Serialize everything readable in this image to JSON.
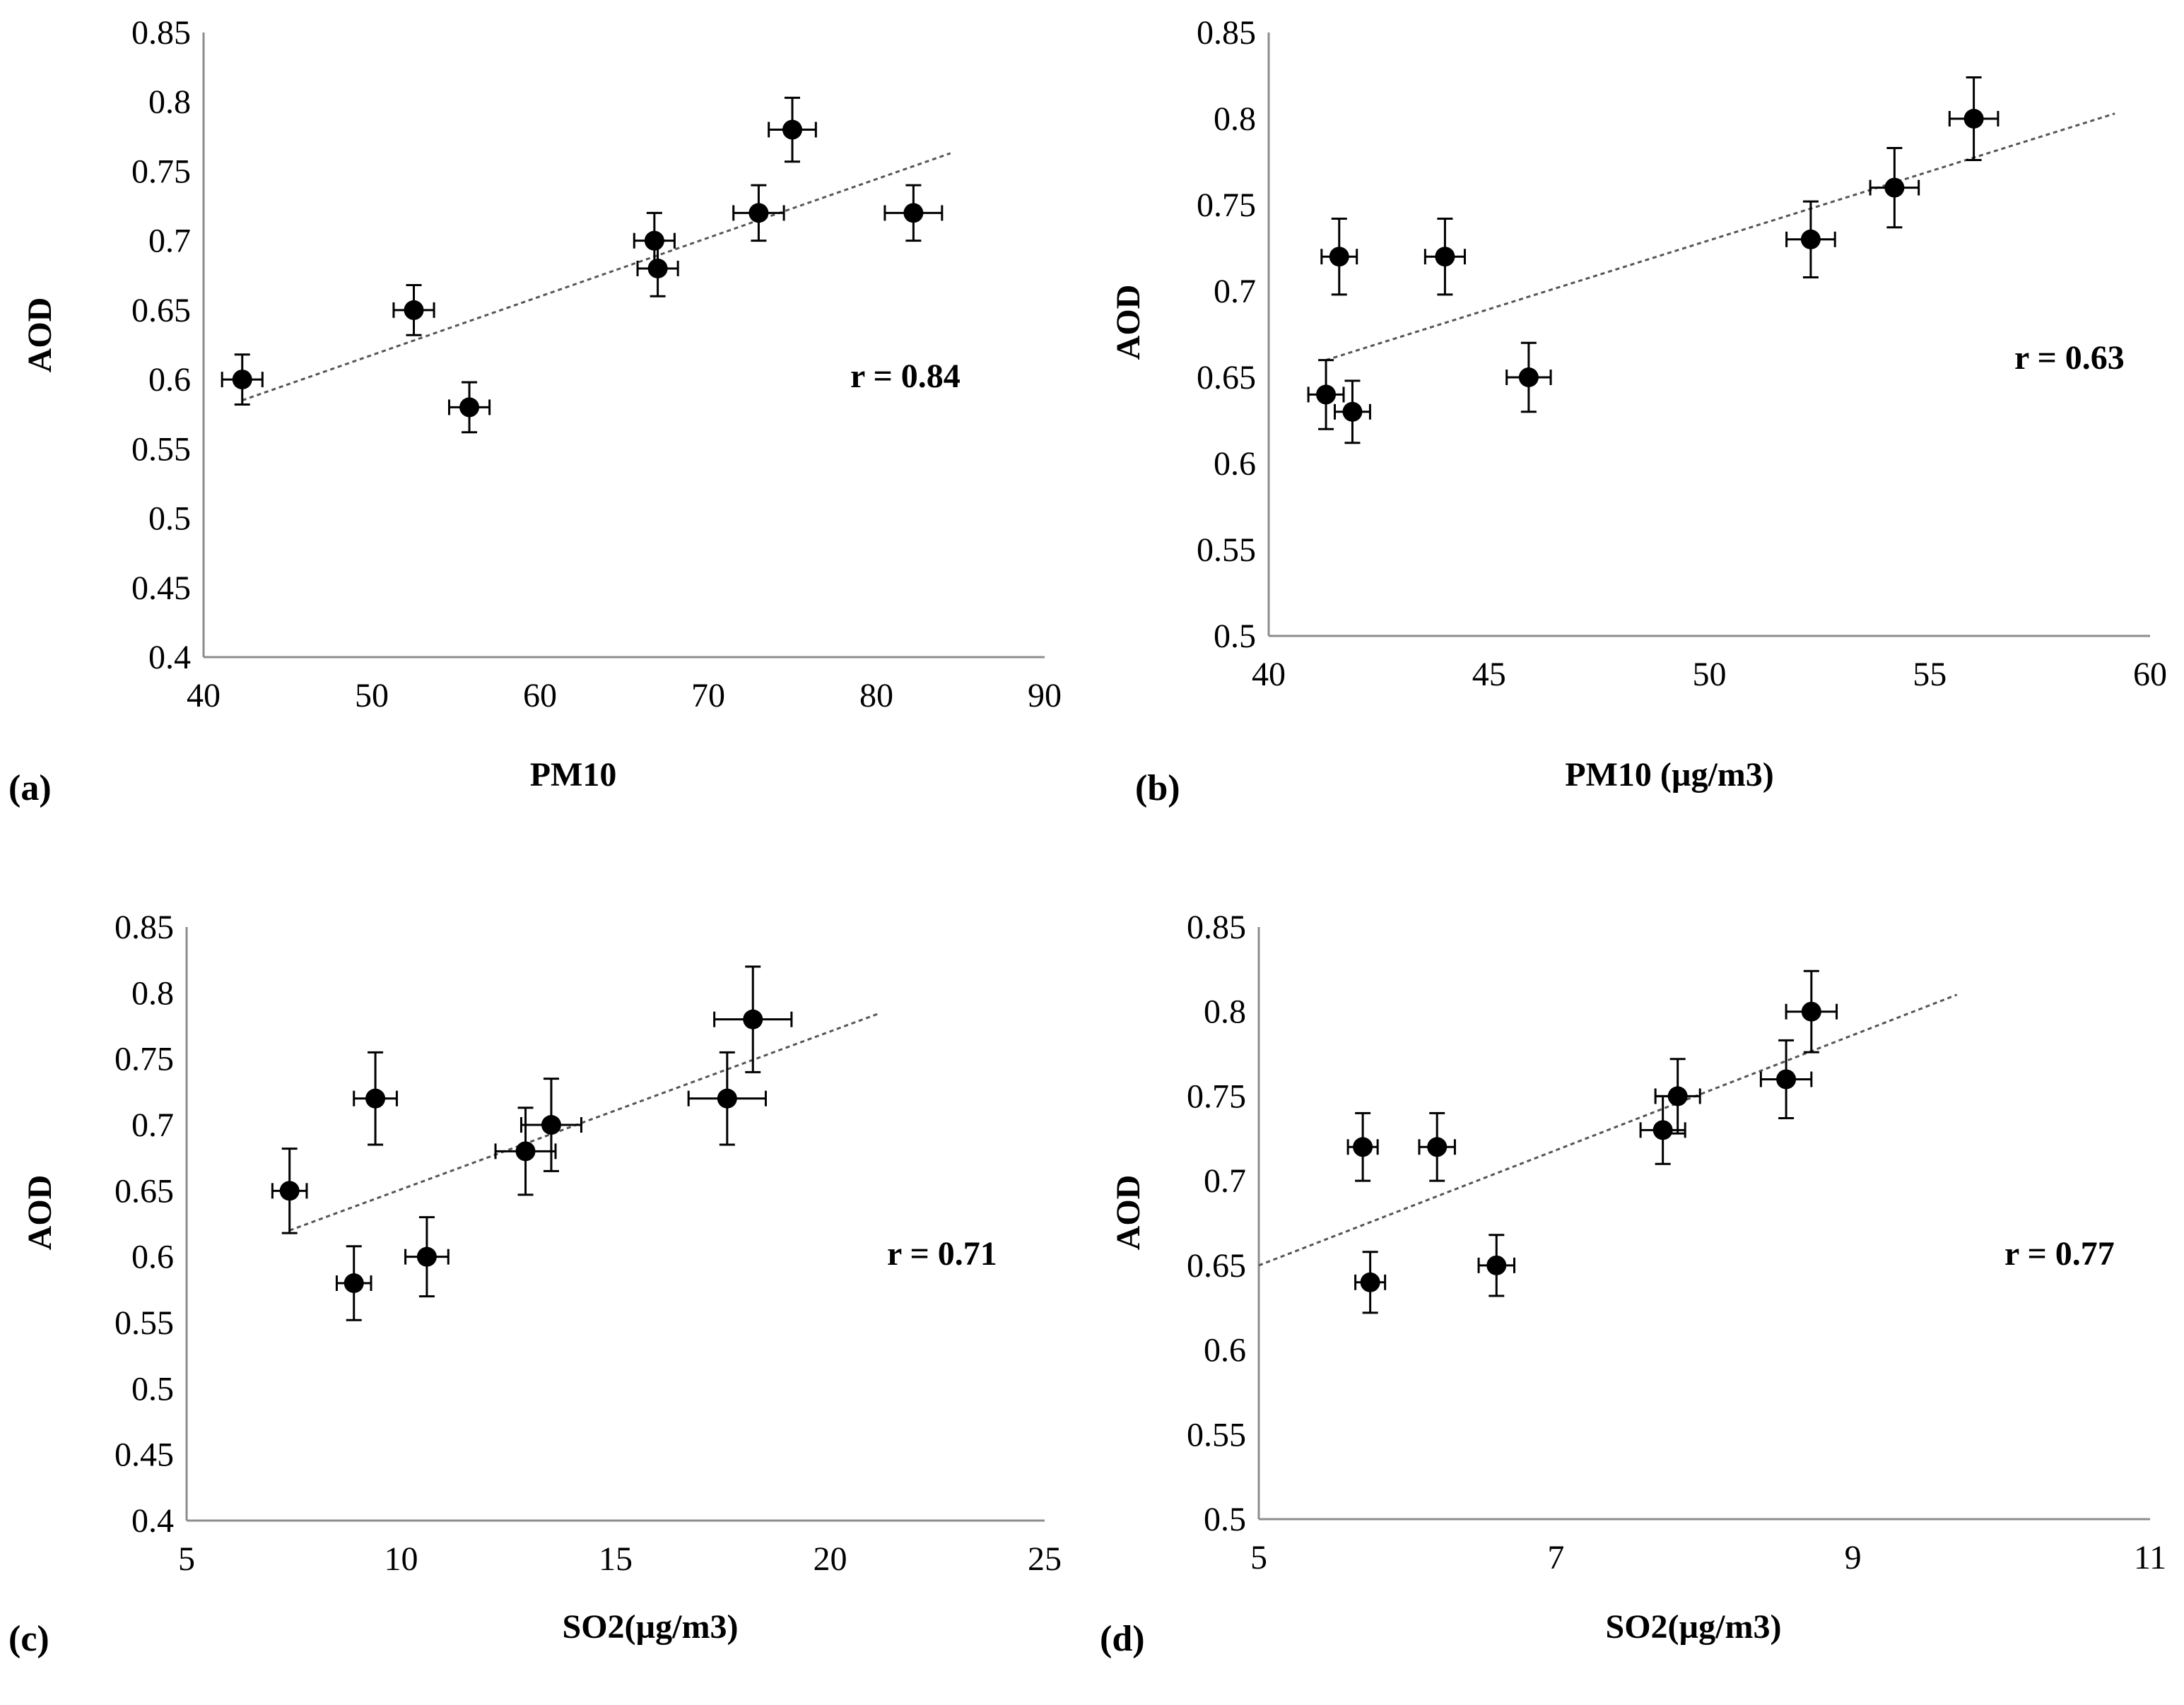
{
  "chart_data": [
    {
      "type": "scatter",
      "panel_label": "(a)",
      "xlabel": "PM10",
      "ylabel": "AOD",
      "xlim": [
        40,
        90
      ],
      "ylim": [
        0.4,
        0.85
      ],
      "xticks": [
        "40",
        "50",
        "60",
        "70",
        "80",
        "90"
      ],
      "yticks": [
        "0.4",
        "0.45",
        "0.5",
        "0.55",
        "0.6",
        "0.65",
        "0.7",
        "0.75",
        "0.8",
        "0.85"
      ],
      "annotation": "r = 0.84",
      "points": [
        {
          "x": 42.3,
          "y": 0.6,
          "xerr": 1.2,
          "yerr": 0.018
        },
        {
          "x": 52.5,
          "y": 0.65,
          "xerr": 1.2,
          "yerr": 0.018
        },
        {
          "x": 55.8,
          "y": 0.58,
          "xerr": 1.2,
          "yerr": 0.018
        },
        {
          "x": 66.8,
          "y": 0.7,
          "xerr": 1.2,
          "yerr": 0.02
        },
        {
          "x": 67.0,
          "y": 0.68,
          "xerr": 1.2,
          "yerr": 0.02
        },
        {
          "x": 73.0,
          "y": 0.72,
          "xerr": 1.5,
          "yerr": 0.02
        },
        {
          "x": 75.0,
          "y": 0.78,
          "xerr": 1.4,
          "yerr": 0.023
        },
        {
          "x": 82.2,
          "y": 0.72,
          "xerr": 1.7,
          "yerr": 0.02
        }
      ],
      "trendline": {
        "x": [
          42.3,
          84.4
        ],
        "y": [
          0.585,
          0.763
        ]
      }
    },
    {
      "type": "scatter",
      "panel_label": "(b)",
      "xlabel": "PM10 (µg/m3)",
      "ylabel": "AOD",
      "xlim": [
        40,
        60
      ],
      "ylim": [
        0.5,
        0.85
      ],
      "xticks": [
        "40",
        "45",
        "50",
        "55",
        "60"
      ],
      "yticks": [
        "0.5",
        "0.55",
        "0.6",
        "0.65",
        "0.7",
        "0.75",
        "0.8",
        "0.85"
      ],
      "annotation": "r = 0.63",
      "points": [
        {
          "x": 41.3,
          "y": 0.64,
          "xerr": 0.4,
          "yerr": 0.02
        },
        {
          "x": 41.9,
          "y": 0.63,
          "xerr": 0.4,
          "yerr": 0.018
        },
        {
          "x": 41.6,
          "y": 0.72,
          "xerr": 0.4,
          "yerr": 0.022
        },
        {
          "x": 44.0,
          "y": 0.72,
          "xerr": 0.45,
          "yerr": 0.022
        },
        {
          "x": 45.9,
          "y": 0.65,
          "xerr": 0.5,
          "yerr": 0.02
        },
        {
          "x": 52.3,
          "y": 0.73,
          "xerr": 0.55,
          "yerr": 0.022
        },
        {
          "x": 54.2,
          "y": 0.76,
          "xerr": 0.55,
          "yerr": 0.023
        },
        {
          "x": 56.0,
          "y": 0.8,
          "xerr": 0.55,
          "yerr": 0.024
        }
      ],
      "trendline": {
        "x": [
          41.3,
          59.2
        ],
        "y": [
          0.66,
          0.803
        ]
      }
    },
    {
      "type": "scatter",
      "panel_label": "(c)",
      "xlabel": "SO2(µg/m3)",
      "ylabel": "AOD",
      "xlim": [
        5,
        25
      ],
      "ylim": [
        0.4,
        0.85
      ],
      "xticks": [
        "5",
        "10",
        "15",
        "20",
        "25"
      ],
      "yticks": [
        "0.4",
        "0.45",
        "0.5",
        "0.55",
        "0.6",
        "0.65",
        "0.7",
        "0.75",
        "0.8",
        "0.85"
      ],
      "annotation": "r = 0.71",
      "points": [
        {
          "x": 7.4,
          "y": 0.65,
          "xerr": 0.4,
          "yerr": 0.032
        },
        {
          "x": 8.9,
          "y": 0.58,
          "xerr": 0.4,
          "yerr": 0.028
        },
        {
          "x": 9.4,
          "y": 0.72,
          "xerr": 0.5,
          "yerr": 0.035
        },
        {
          "x": 10.6,
          "y": 0.6,
          "xerr": 0.5,
          "yerr": 0.03
        },
        {
          "x": 12.9,
          "y": 0.68,
          "xerr": 0.7,
          "yerr": 0.033
        },
        {
          "x": 13.5,
          "y": 0.7,
          "xerr": 0.7,
          "yerr": 0.035
        },
        {
          "x": 17.6,
          "y": 0.72,
          "xerr": 0.9,
          "yerr": 0.035
        },
        {
          "x": 18.2,
          "y": 0.78,
          "xerr": 0.9,
          "yerr": 0.04
        }
      ],
      "trendline": {
        "x": [
          7.4,
          21.1
        ],
        "y": [
          0.62,
          0.784
        ]
      }
    },
    {
      "type": "scatter",
      "panel_label": "(d)",
      "xlabel": "SO2(µg/m3)",
      "ylabel": "AOD",
      "xlim": [
        5,
        11
      ],
      "ylim": [
        0.5,
        0.85
      ],
      "xticks": [
        "5",
        "7",
        "9",
        "11"
      ],
      "yticks": [
        "0.5",
        "0.55",
        "0.6",
        "0.65",
        "0.7",
        "0.75",
        "0.8",
        "0.85"
      ],
      "annotation": "r = 0.77",
      "points": [
        {
          "x": 5.7,
          "y": 0.72,
          "xerr": 0.1,
          "yerr": 0.02
        },
        {
          "x": 5.75,
          "y": 0.64,
          "xerr": 0.1,
          "yerr": 0.018
        },
        {
          "x": 6.2,
          "y": 0.72,
          "xerr": 0.12,
          "yerr": 0.02
        },
        {
          "x": 6.6,
          "y": 0.65,
          "xerr": 0.12,
          "yerr": 0.018
        },
        {
          "x": 7.72,
          "y": 0.73,
          "xerr": 0.15,
          "yerr": 0.02
        },
        {
          "x": 7.82,
          "y": 0.75,
          "xerr": 0.15,
          "yerr": 0.022
        },
        {
          "x": 8.55,
          "y": 0.76,
          "xerr": 0.17,
          "yerr": 0.023
        },
        {
          "x": 8.72,
          "y": 0.8,
          "xerr": 0.17,
          "yerr": 0.024
        }
      ],
      "trendline": {
        "x": [
          5.0,
          9.7
        ],
        "y": [
          0.65,
          0.81
        ]
      }
    }
  ]
}
